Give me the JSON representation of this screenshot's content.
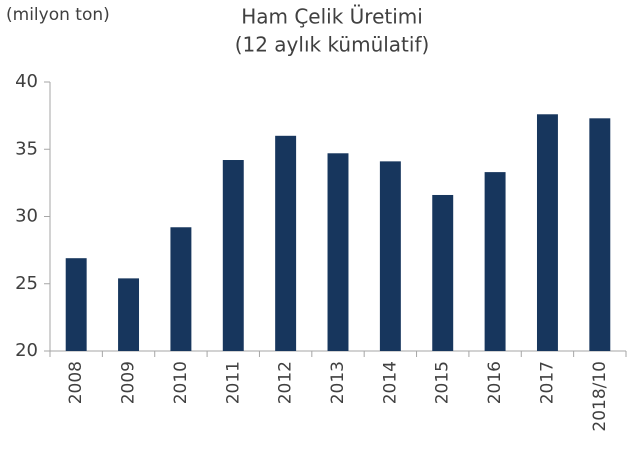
{
  "chart_data": {
    "type": "bar",
    "title": "Ham Çelik Üretimi",
    "subtitle": "(12 aylık kümülatif)",
    "y_label": "(milyon ton)",
    "categories": [
      "2008",
      "2009",
      "2010",
      "2011",
      "2012",
      "2013",
      "2014",
      "2015",
      "2016",
      "2017",
      "2018/10"
    ],
    "values": [
      26.9,
      25.4,
      29.2,
      34.2,
      36.0,
      34.7,
      34.1,
      31.6,
      33.3,
      37.6,
      37.3
    ],
    "color": "#17365d",
    "ylim": [
      20,
      40
    ],
    "yticks": [
      20,
      25,
      30,
      35,
      40
    ],
    "grid": false
  }
}
